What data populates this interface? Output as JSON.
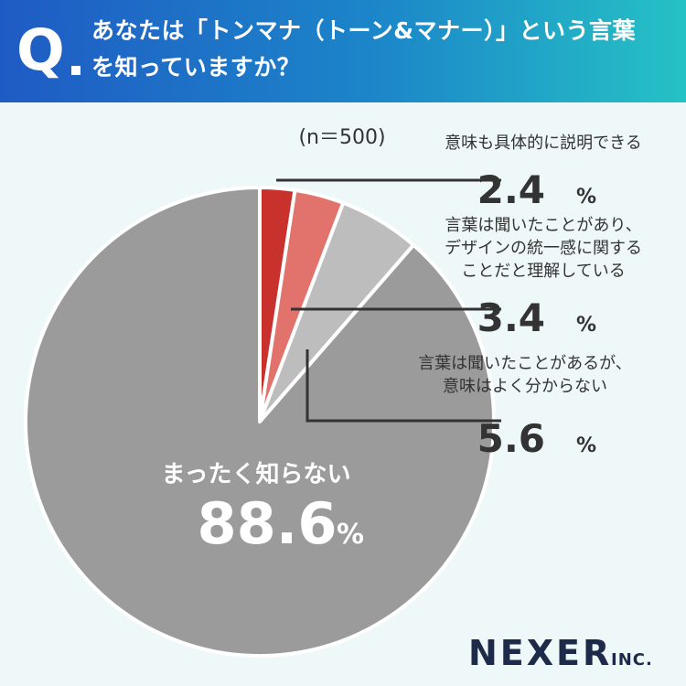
{
  "header": {
    "q_mark": "Q",
    "question_line1": "あなたは「トンマナ（トーン&マナー）」という言葉",
    "question_line2": "を知っていますか？"
  },
  "chart_data": {
    "type": "pie",
    "sample_size": "(n＝500)",
    "start_angle": "12 o'clock",
    "direction": "clockwise",
    "slices": [
      {
        "label_lines": [
          "意味も具体的に説明できる"
        ],
        "value": 2.4,
        "value_text": "2.4",
        "color": "#c8312c"
      },
      {
        "label_lines": [
          "言葉は聞いたことがあり、",
          "デザインの統一感に関する",
          "ことだと理解している"
        ],
        "value": 3.4,
        "value_text": "3.4",
        "color": "#e2736c"
      },
      {
        "label_lines": [
          "言葉は聞いたことがあるが、",
          "意味はよく分からない"
        ],
        "value": 5.6,
        "value_text": "5.6",
        "color": "#bdbdbd"
      },
      {
        "label_lines": [
          "まったく知らない"
        ],
        "value": 88.6,
        "value_text": "88.6",
        "color": "#9b9b9b"
      }
    ],
    "unit": "%"
  },
  "footer": {
    "logo_main": "NEXER",
    "logo_sub": "INC.",
    "logo_color": "#1e2a4a"
  }
}
